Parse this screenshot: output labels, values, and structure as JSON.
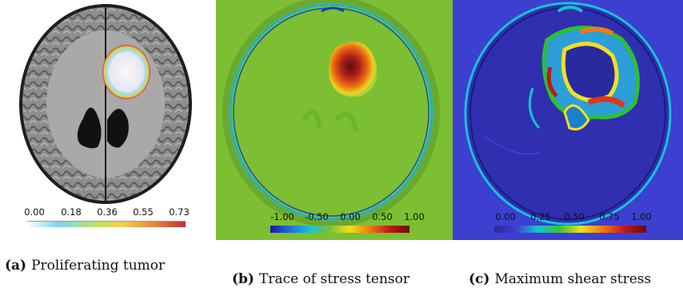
{
  "panels": [
    {
      "caption_tag": "(a)",
      "caption_text": "Proliferating tumor",
      "colorbar_ticks": [
        "0.00",
        "0.18",
        "0.36",
        "0.55",
        "0.73"
      ],
      "background": "#ffffff",
      "colorbar_colors": [
        "#ffffff",
        "#7fd3f0",
        "#b4e27a",
        "#f1d34a",
        "#e9873a",
        "#b9303b"
      ]
    },
    {
      "caption_tag": "(b)",
      "caption_text": "Trace of stress tensor",
      "colorbar_ticks": [
        "-1.00",
        "-0.50",
        "0.00",
        "0.50",
        "1.00"
      ],
      "background": "#7cbf32",
      "colorbar_colors": [
        "#1a1aa0",
        "#1f6fe0",
        "#18c2d6",
        "#7cbf32",
        "#f0e020",
        "#f07a10",
        "#c01818",
        "#6a0a0a"
      ]
    },
    {
      "caption_tag": "(c)",
      "caption_text": "Maximum shear stress",
      "colorbar_ticks": [
        "0.00",
        "0.25",
        "0.50",
        "0.75",
        "1.00"
      ],
      "background": "#3c3fd0",
      "colorbar_colors": [
        "#2a2a9a",
        "#3c3fd0",
        "#18c2d6",
        "#3ac23a",
        "#f0e020",
        "#f07a10",
        "#c01818",
        "#6a0a0a"
      ]
    }
  ]
}
